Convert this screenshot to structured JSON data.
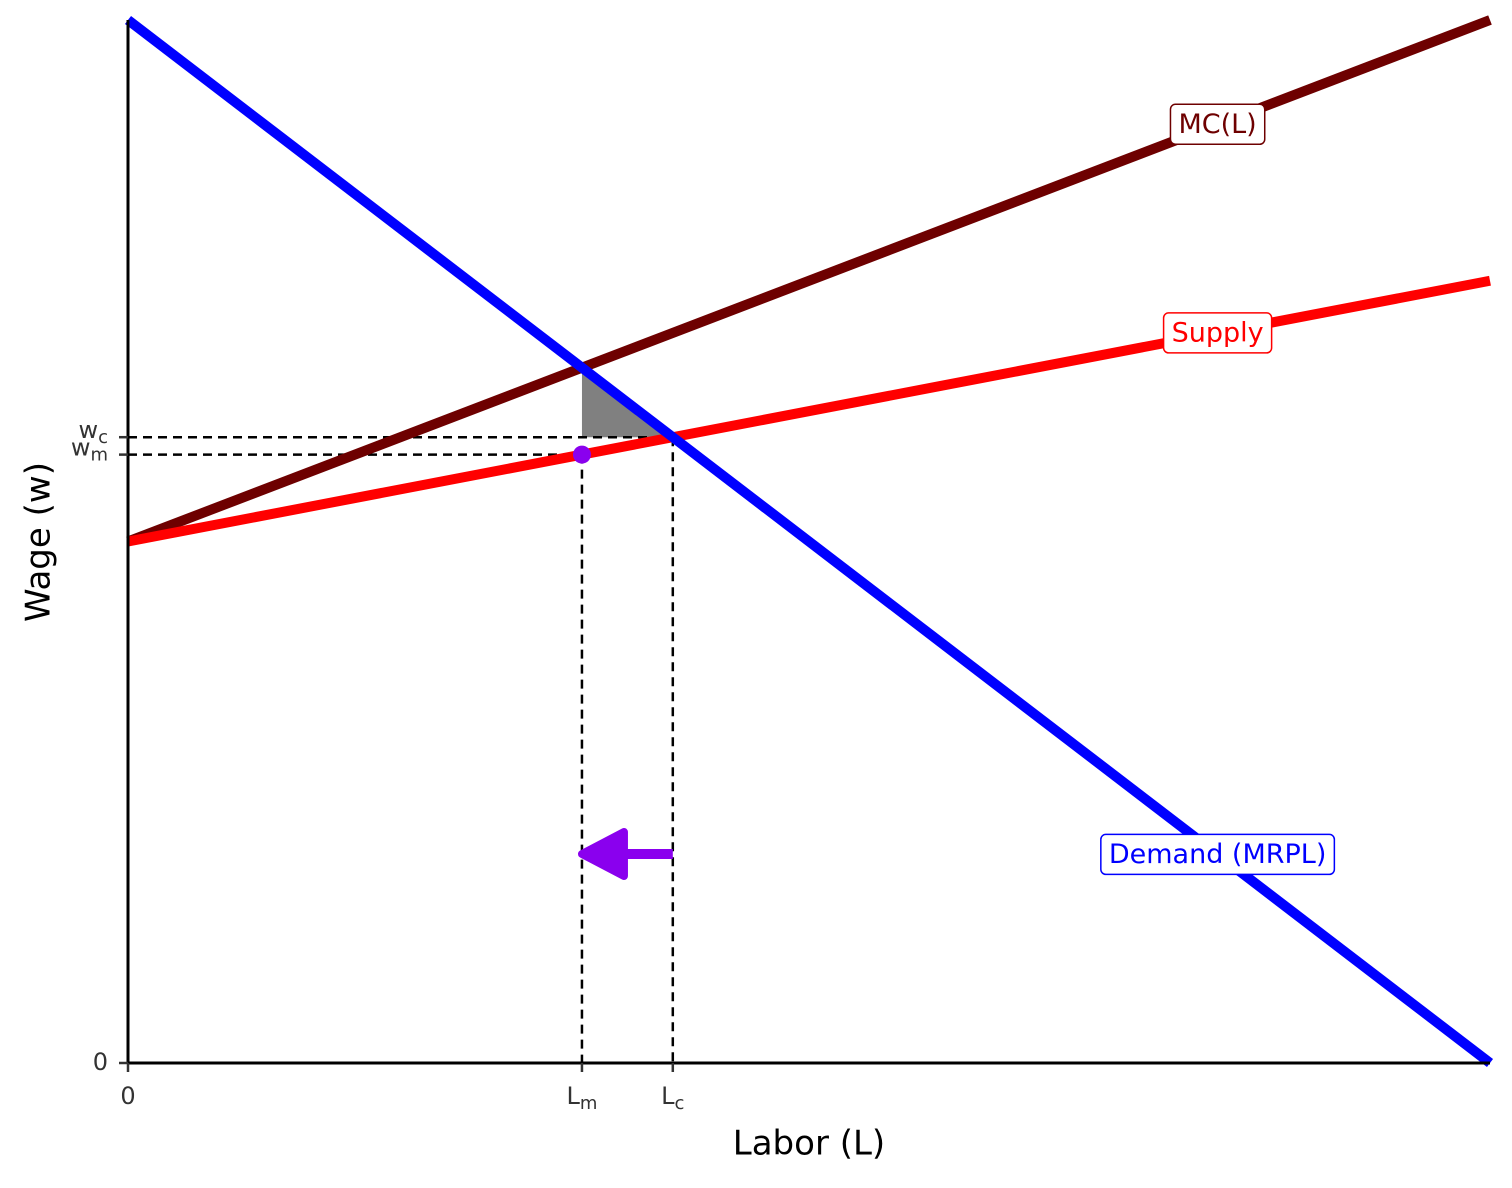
{
  "chart_data": {
    "type": "line",
    "x_label": "Labor (L)",
    "y_label": "Wage (w)",
    "x": [
      0,
      10
    ],
    "series": [
      {
        "name": "MC(L)",
        "color": "#6e0000",
        "values": [
          5,
          10
        ]
      },
      {
        "name": "Supply",
        "color": "#ff0000",
        "values": [
          5,
          7.5
        ]
      },
      {
        "name": "Demand (MRPL)",
        "color": "#0000ff",
        "values": [
          10,
          0
        ]
      }
    ],
    "xlim": [
      0,
      10
    ],
    "ylim": [
      0,
      10
    ],
    "xticks": [
      0,
      {
        "value": 3.333,
        "label": "Lm"
      },
      {
        "value": 4,
        "label": "Lc"
      }
    ],
    "yticks": [
      0,
      {
        "value": 5.833,
        "label": "wm"
      },
      {
        "value": 6,
        "label": "wc"
      }
    ],
    "highlight_color": "#8a00ee",
    "shade_color": "#808080"
  }
}
